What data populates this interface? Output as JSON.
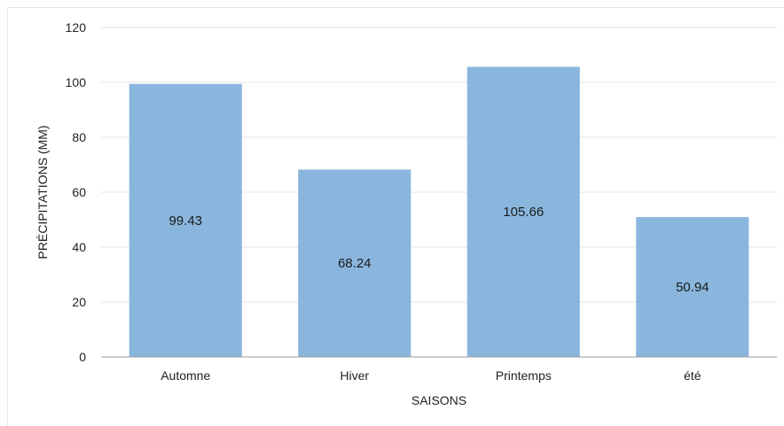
{
  "chart_data": {
    "type": "bar",
    "categories": [
      "Automne",
      "Hiver",
      "Printemps",
      "été"
    ],
    "values": [
      99.43,
      68.24,
      105.66,
      50.94
    ],
    "data_labels": [
      "99.43",
      "68.24",
      "105.66",
      "50.94"
    ],
    "xlabel": "SAISONS",
    "ylabel": "PRÉCIPITATIONS (MM)",
    "ylim": [
      0,
      120
    ],
    "yticks": [
      0,
      20,
      40,
      60,
      80,
      100,
      120
    ],
    "grid": true,
    "legend": "none",
    "colors": {
      "bar": "#8ab6de",
      "grid": "#e4e4e4",
      "axis": "#9a9a9a",
      "text": "#222222"
    }
  }
}
